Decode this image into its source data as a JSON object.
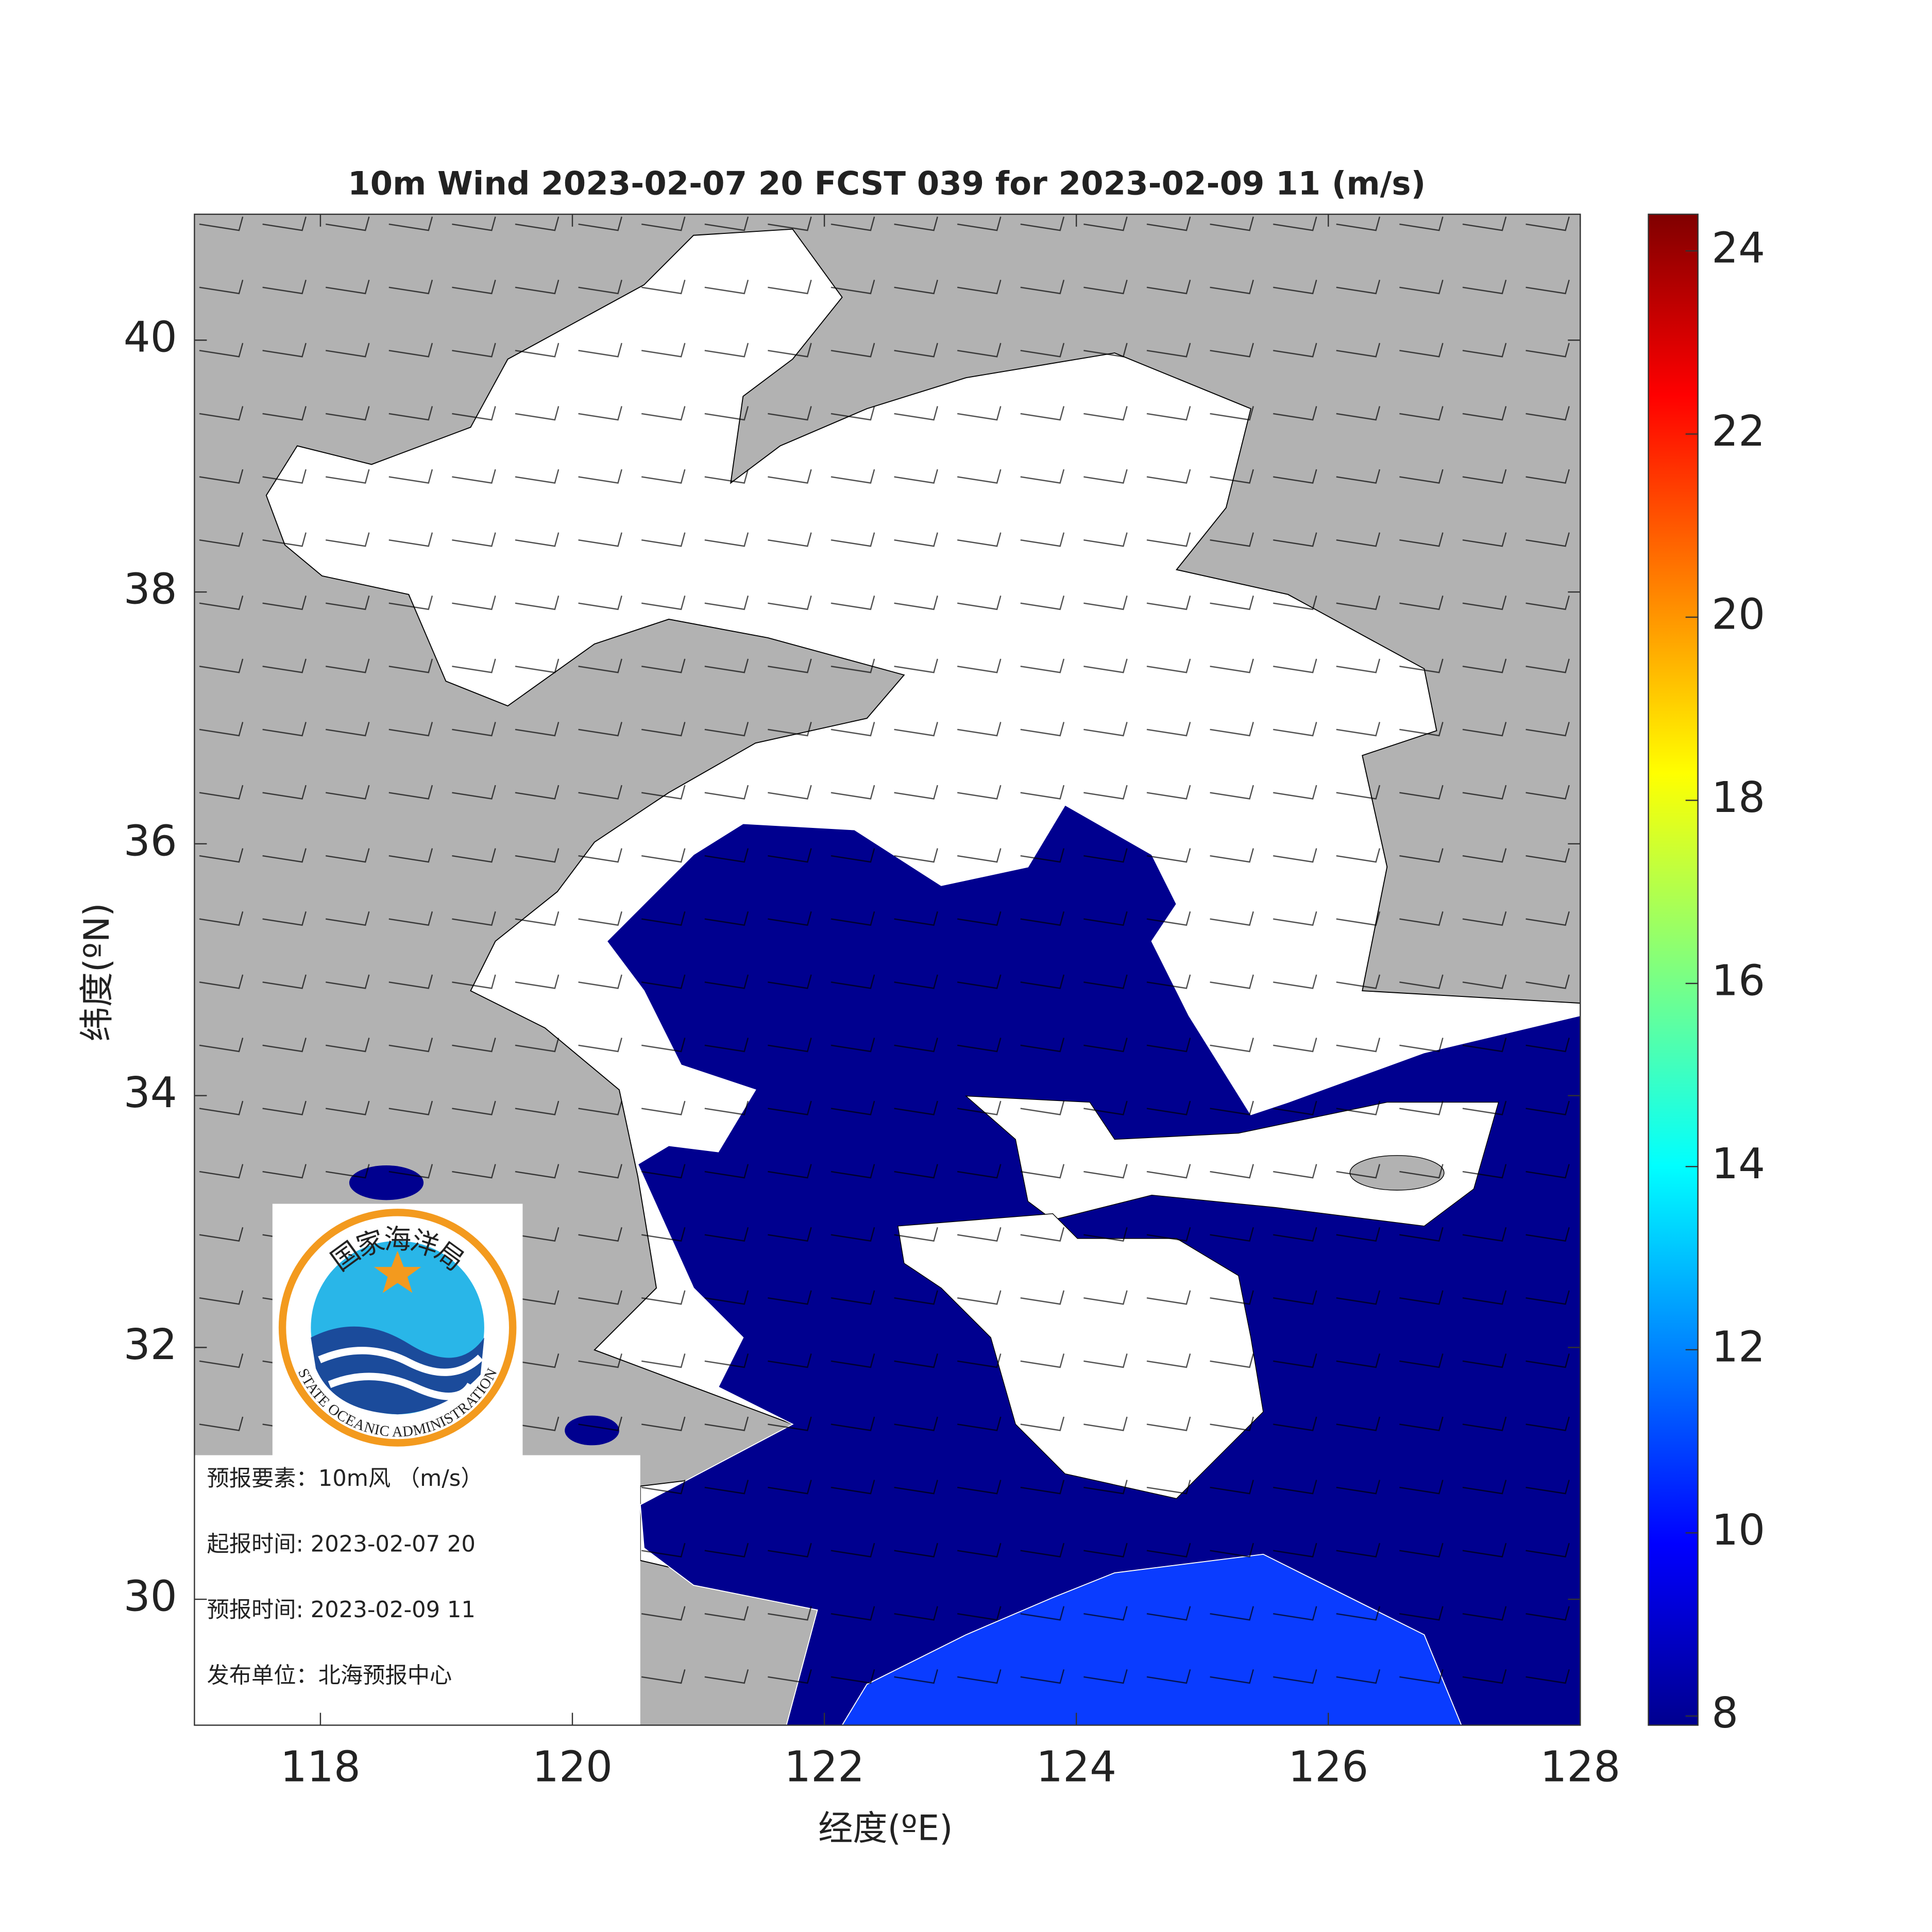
{
  "title": "10m Wind 2023-02-07 20 FCST 039 for 2023-02-09 11 (m/s)",
  "x_axis": {
    "label": "经度(ºE)",
    "lim": [
      117,
      128
    ],
    "ticks": [
      118,
      120,
      122,
      124,
      126,
      128
    ]
  },
  "y_axis": {
    "label": "纬度(ºN)",
    "lim": [
      29,
      41
    ],
    "ticks": [
      30,
      32,
      34,
      36,
      38,
      40
    ]
  },
  "colorbar": {
    "lim": [
      7.9,
      24.4
    ],
    "ticks": [
      8,
      10,
      12,
      14,
      16,
      18,
      20,
      22,
      24
    ]
  },
  "logo": {
    "name_cn": "国家海洋局",
    "name_en": "STATE OCEANIC ADMINISTRATION"
  },
  "info": [
    "预报要素：10m风 （m/s）",
    "起报时间: 2023-02-07 20",
    "预报时间: 2023-02-09 11",
    "发布单位：北海预报中心"
  ]
}
